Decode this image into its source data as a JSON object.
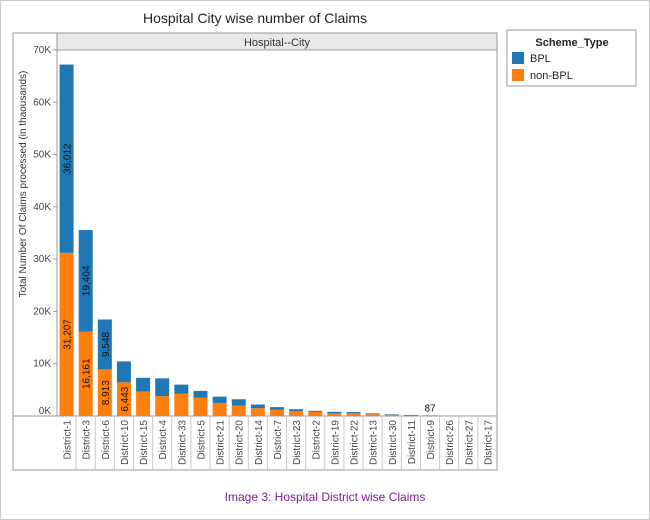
{
  "caption": "Image 3: Hospital District wise Claims",
  "chart_data": {
    "type": "bar",
    "stacked": true,
    "orientation": "vertical",
    "title": "Hospital City wise number of Claims",
    "facet_header": "Hospital--City",
    "ylabel": "Total Number Of Claims processed (in thaousands)",
    "xlabel": "",
    "ylim": [
      0,
      70000
    ],
    "yticks": [
      0,
      10000,
      20000,
      30000,
      40000,
      50000,
      60000,
      70000
    ],
    "ytick_labels": [
      "0K",
      "10K",
      "20K",
      "30K",
      "40K",
      "50K",
      "60K",
      "70K"
    ],
    "grid": false,
    "legend": {
      "title": "Scheme_Type",
      "position": "right",
      "items": [
        {
          "name": "BPL",
          "color": "#1f77b4"
        },
        {
          "name": "non-BPL",
          "color": "#ff7f0e"
        }
      ]
    },
    "categories": [
      "District-1",
      "District-3",
      "District-6",
      "District-10",
      "District-15",
      "District-4",
      "District-33",
      "District-5",
      "District-21",
      "District-20",
      "District-14",
      "District-7",
      "District-23",
      "District-2",
      "District-19",
      "District-22",
      "District-13",
      "District-30",
      "District-11",
      "District-9",
      "District-26",
      "District-27",
      "District-17"
    ],
    "series": [
      {
        "name": "non-BPL",
        "color": "#ff7f0e",
        "values": [
          31207,
          16161,
          8913,
          6443,
          4700,
          3800,
          4300,
          3500,
          2500,
          2000,
          1500,
          1200,
          900,
          800,
          500,
          500,
          350,
          250,
          100,
          0,
          0,
          0,
          0
        ]
      },
      {
        "name": "BPL",
        "color": "#1f77b4",
        "values": [
          36012,
          19404,
          9548,
          4000,
          2600,
          3400,
          1700,
          1300,
          1200,
          1200,
          700,
          500,
          400,
          200,
          300,
          250,
          150,
          100,
          100,
          87,
          0,
          0,
          0
        ]
      }
    ],
    "data_labels": [
      {
        "category": "District-1",
        "series": "non-BPL",
        "text": "31,207"
      },
      {
        "category": "District-1",
        "series": "BPL",
        "text": "36,012"
      },
      {
        "category": "District-3",
        "series": "non-BPL",
        "text": "16,161"
      },
      {
        "category": "District-3",
        "series": "BPL",
        "text": "19,404"
      },
      {
        "category": "District-6",
        "series": "non-BPL",
        "text": "8,913"
      },
      {
        "category": "District-6",
        "series": "BPL",
        "text": "9,548"
      },
      {
        "category": "District-10",
        "series": "non-BPL",
        "text": "6,443"
      },
      {
        "category": "District-9",
        "series": "total",
        "text": "87"
      }
    ]
  }
}
